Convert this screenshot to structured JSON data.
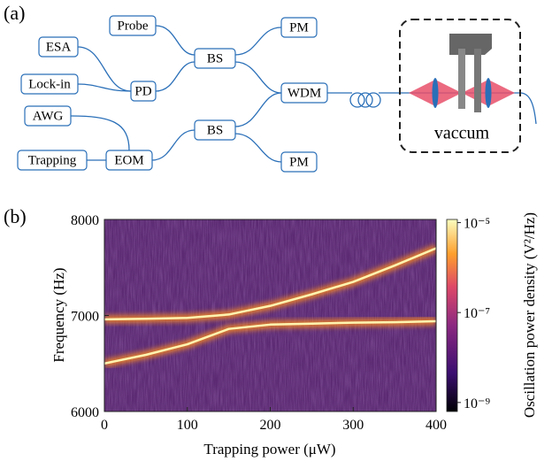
{
  "panel_labels": [
    "(a)",
    "(b)"
  ],
  "diagram": {
    "nodes": [
      {
        "label": "Probe"
      },
      {
        "label": "ESA"
      },
      {
        "label": "Lock-in"
      },
      {
        "label": "PD"
      },
      {
        "label": "BS"
      },
      {
        "label": "PM"
      },
      {
        "label": "WDM"
      },
      {
        "label": "AWG"
      },
      {
        "label": "BS"
      },
      {
        "label": "Trapping"
      },
      {
        "label": "EOM"
      },
      {
        "label": "PM"
      }
    ],
    "chamber_label": "vaccum"
  },
  "chart_data": {
    "type": "line",
    "xlabel": "Trapping power (μW)",
    "ylabel": "Frequency (Hz)",
    "x": [
      0,
      50,
      100,
      150,
      200,
      250,
      300,
      350,
      400
    ],
    "series": [
      {
        "color": "#fff4b0",
        "values": [
          6960,
          6965,
          6975,
          7010,
          7100,
          7220,
          7350,
          7520,
          7700
        ]
      },
      {
        "color": "#fff4b0",
        "values": [
          6500,
          6590,
          6700,
          6860,
          6905,
          6915,
          6925,
          6930,
          6940
        ]
      }
    ],
    "xlim": [
      0,
      400
    ],
    "xticks": [
      0,
      100,
      200,
      300,
      400
    ],
    "ylim": [
      6000,
      8000
    ],
    "yticks": [
      6000,
      7000,
      8000
    ],
    "colorbar": {
      "label": "Oscillation power density (V²/Hz)",
      "lim": [
        -9.2,
        -4.93
      ],
      "ticks": [
        {
          "value": -5,
          "label": "10⁻⁵"
        },
        {
          "value": -7,
          "label": "10⁻⁷"
        },
        {
          "value": -9,
          "label": "10⁻⁹"
        }
      ]
    }
  }
}
